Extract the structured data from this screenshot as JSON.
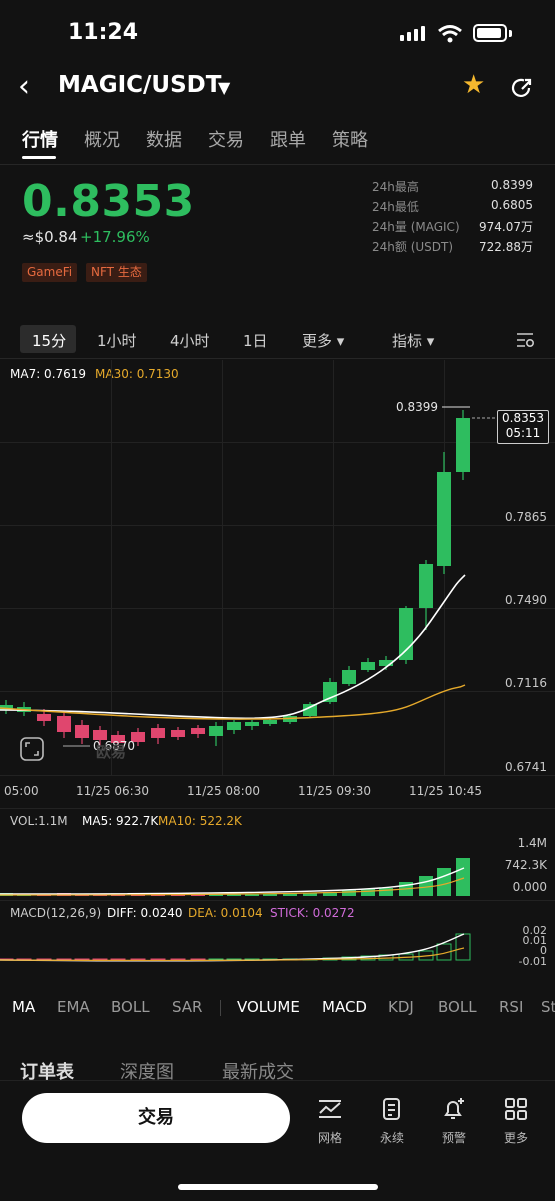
{
  "status": {
    "time": "11:24"
  },
  "header": {
    "pair": "MAGIC/USDT"
  },
  "tabs": [
    "行情",
    "概况",
    "数据",
    "交易",
    "跟单",
    "策略"
  ],
  "ticker": {
    "price": "0.8353",
    "approx": "≈$0.84",
    "change": "+17.96%",
    "tags": [
      "GameFi",
      "NFT 生态"
    ],
    "stats": [
      {
        "label": "24h最高",
        "value": "0.8399"
      },
      {
        "label": "24h最低",
        "value": "0.6805"
      },
      {
        "label": "24h量 (MAGIC)",
        "value": "974.07万"
      },
      {
        "label": "24h额 (USDT)",
        "value": "722.88万"
      }
    ]
  },
  "timeframes": [
    "15分",
    "1小时",
    "4小时",
    "1日",
    "更多 ▾",
    "指标 ▾"
  ],
  "main_chart": {
    "ma7": "MA7: 0.7619",
    "ma30": "MA30: 0.7130",
    "high_marker": "0.8399",
    "low_marker": "0.6870",
    "last_price": "0.8353",
    "countdown": "05:11",
    "axis": [
      "0.7865",
      "0.7490",
      "0.7116",
      "0.6741"
    ],
    "times": [
      "05:00",
      "11/25 06:30",
      "11/25 08:00",
      "11/25 09:30",
      "11/25 10:45"
    ],
    "watermark": "欧易"
  },
  "volume": {
    "vol": "VOL:1.1M",
    "ma5": "MA5: 922.7K",
    "ma10": "MA10: 522.2K",
    "axis": [
      "1.4M",
      "742.3K",
      "0.000"
    ]
  },
  "macd": {
    "label": "MACD(12,26,9)",
    "diff": "DIFF: 0.0240",
    "dea": "DEA: 0.0104",
    "stick": "STICK: 0.0272",
    "axis": [
      "0.02",
      "0.01",
      "0",
      "-0.01"
    ]
  },
  "indicators": [
    "MA",
    "EMA",
    "BOLL",
    "SAR",
    "VOLUME",
    "MACD",
    "KDJ",
    "BOLL",
    "RSI",
    "St"
  ],
  "section_tabs": [
    "订单表",
    "深度图",
    "最新成交"
  ],
  "bottom": {
    "trade": "交易",
    "icons": [
      {
        "label": "网格",
        "icon": "grid-chart-icon"
      },
      {
        "label": "永续",
        "icon": "perpetual-icon"
      },
      {
        "label": "预警",
        "icon": "bell-plus-icon"
      },
      {
        "label": "更多",
        "icon": "apps-icon"
      }
    ]
  },
  "colors": {
    "up": "#2ebd5f",
    "down": "#e0466e",
    "ma7": "#ffffff",
    "ma30": "#e5a92b",
    "stick": "#d06bd9"
  }
}
